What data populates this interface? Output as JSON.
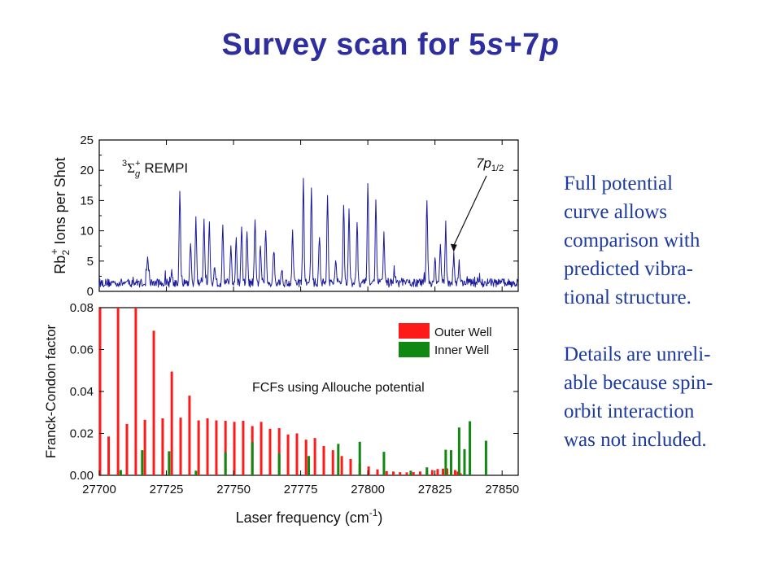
{
  "title": {
    "prefix": "Survey scan for 5",
    "s": "s",
    "plus": "+7",
    "p": "p"
  },
  "side_text": {
    "para1": [
      "Full potential",
      "curve allows",
      "comparison with",
      "predicted vibra-",
      "tional structure."
    ],
    "para2": [
      "Details are unreli-",
      "able because spin-",
      "orbit interaction",
      "was not included."
    ]
  },
  "colors": {
    "spectrum": "#1a1a9c",
    "outer": "#ff1a1a",
    "inner": "#118811",
    "text": "#1d3aa1",
    "title": "#2e2e9e"
  },
  "chart_data": [
    {
      "type": "line",
      "ylabel_main": "Rb",
      "ylabel_sub": "2",
      "ylabel_sup": "+",
      "ylabel_rest": " Ions per Shot",
      "annotation": {
        "text_main": "3",
        "sigma": "Σ",
        "sub": "g",
        "sup": "+",
        "rest": " REMPI"
      },
      "arrow_label": {
        "main": "7p",
        "sub": "1/2",
        "points_to_x": 27832,
        "points_to_y": 6.5
      },
      "xlim": [
        27700,
        27856
      ],
      "ylim": [
        0,
        25
      ],
      "yticks": [
        0,
        5,
        10,
        15,
        20,
        25
      ],
      "baseline": 1.4,
      "peaks": [
        [
          27718,
          5.6,
          0.4
        ],
        [
          27727,
          3.2,
          0.4
        ],
        [
          27730,
          16.6,
          0.35
        ],
        [
          27734,
          8.5,
          0.35
        ],
        [
          27736,
          11.8,
          0.35
        ],
        [
          27739,
          12.2,
          0.35
        ],
        [
          27741,
          11.5,
          0.35
        ],
        [
          27743,
          4.0,
          0.4
        ],
        [
          27746,
          11.6,
          0.35
        ],
        [
          27749,
          8.0,
          0.35
        ],
        [
          27751,
          8.7,
          0.35
        ],
        [
          27753,
          11.0,
          0.35
        ],
        [
          27755,
          9.8,
          0.35
        ],
        [
          27758,
          11.8,
          0.35
        ],
        [
          27760,
          7.9,
          0.35
        ],
        [
          27762,
          10.0,
          0.35
        ],
        [
          27765,
          7.1,
          0.4
        ],
        [
          27768,
          3.5,
          0.4
        ],
        [
          27772,
          9.6,
          0.35
        ],
        [
          27776,
          18.3,
          0.35
        ],
        [
          27779,
          16.6,
          0.35
        ],
        [
          27782,
          9.0,
          0.35
        ],
        [
          27785,
          16.3,
          0.35
        ],
        [
          27788,
          5.0,
          0.4
        ],
        [
          27791,
          14.8,
          0.35
        ],
        [
          27793,
          13.2,
          0.35
        ],
        [
          27796,
          12.0,
          0.35
        ],
        [
          27800,
          18.0,
          0.35
        ],
        [
          27803,
          15.0,
          0.35
        ],
        [
          27806,
          9.3,
          0.35
        ],
        [
          27810,
          2.8,
          0.4
        ],
        [
          27822,
          15.6,
          0.35
        ],
        [
          27825,
          5.5,
          0.35
        ],
        [
          27827,
          7.8,
          0.35
        ],
        [
          27829,
          11.0,
          0.35
        ],
        [
          27832,
          6.2,
          0.35
        ],
        [
          27834,
          5.0,
          0.35
        ],
        [
          27837,
          2.0,
          0.4
        ]
      ]
    },
    {
      "type": "bar",
      "xlabel_main": "Laser frequency (cm",
      "xlabel_sup": "-1",
      "xlabel_end": ")",
      "ylabel": "Franck-Condon factor",
      "annotation": "FCFs using Allouche potential",
      "legend": {
        "placement": "top-right",
        "entries": [
          "Outer Well",
          "Inner Well"
        ]
      },
      "xlim": [
        27700,
        27856
      ],
      "ylim": [
        0,
        0.08
      ],
      "yticks": [
        "0.00",
        "0.02",
        "0.04",
        "0.06",
        "0.08"
      ],
      "xticks": [
        "27700",
        "27725",
        "27750",
        "27775",
        "27800",
        "27825",
        "27850"
      ],
      "xtick_values": [
        27700,
        27725,
        27750,
        27775,
        27800,
        27825,
        27850
      ],
      "series": [
        {
          "name": "Outer Well",
          "points": [
            [
              27700.3,
              0.08
            ],
            [
              27703.5,
              0.0185
            ],
            [
              27707,
              0.08
            ],
            [
              27710.3,
              0.0245
            ],
            [
              27713.6,
              0.08
            ],
            [
              27717,
              0.0265
            ],
            [
              27720.3,
              0.069
            ],
            [
              27723.6,
              0.0272
            ],
            [
              27727,
              0.0495
            ],
            [
              27730.3,
              0.0275
            ],
            [
              27733.6,
              0.038
            ],
            [
              27737,
              0.0262
            ],
            [
              27740.3,
              0.0272
            ],
            [
              27743.6,
              0.0262
            ],
            [
              27747,
              0.026
            ],
            [
              27750.3,
              0.0255
            ],
            [
              27753.6,
              0.026
            ],
            [
              27757,
              0.0235
            ],
            [
              27760.3,
              0.0255
            ],
            [
              27763.6,
              0.0222
            ],
            [
              27767,
              0.0225
            ],
            [
              27770.3,
              0.0195
            ],
            [
              27773.6,
              0.02
            ],
            [
              27777,
              0.017
            ],
            [
              27780.3,
              0.0178
            ],
            [
              27783.6,
              0.014
            ],
            [
              27787,
              0.012
            ],
            [
              27790.3,
              0.0092
            ],
            [
              27793.6,
              0.0078
            ],
            [
              27797,
              0.0055
            ],
            [
              27800.3,
              0.0042
            ],
            [
              27803.6,
              0.0028
            ],
            [
              27807,
              0.002
            ],
            [
              27809.5,
              0.0018
            ],
            [
              27812,
              0.0015
            ],
            [
              27814.5,
              0.0014
            ],
            [
              27817,
              0.0015
            ],
            [
              27819.5,
              0.0018
            ],
            [
              27822,
              0.0022
            ],
            [
              27824,
              0.0025
            ],
            [
              27826,
              0.003
            ],
            [
              27828,
              0.0032
            ],
            [
              27829.5,
              0.0033
            ],
            [
              27831,
              0.003
            ],
            [
              27832.5,
              0.0025
            ],
            [
              27833.5,
              0.0018
            ],
            [
              27834.5,
              0.001
            ]
          ]
        },
        {
          "name": "Inner Well",
          "points": [
            [
              27708,
              0.0025
            ],
            [
              27716,
              0.012
            ],
            [
              27726,
              0.0115
            ],
            [
              27736,
              0.0022
            ],
            [
              27747,
              0.011
            ],
            [
              27757,
              0.016
            ],
            [
              27767,
              0.0105
            ],
            [
              27778,
              0.0092
            ],
            [
              27789,
              0.015
            ],
            [
              27797,
              0.016
            ],
            [
              27806,
              0.0112
            ],
            [
              27816,
              0.0022
            ],
            [
              27822,
              0.0038
            ],
            [
              27829,
              0.0122
            ],
            [
              27831,
              0.012
            ],
            [
              27834,
              0.0228
            ],
            [
              27836,
              0.0125
            ],
            [
              27838,
              0.0258
            ],
            [
              27844,
              0.0165
            ]
          ]
        }
      ]
    }
  ]
}
